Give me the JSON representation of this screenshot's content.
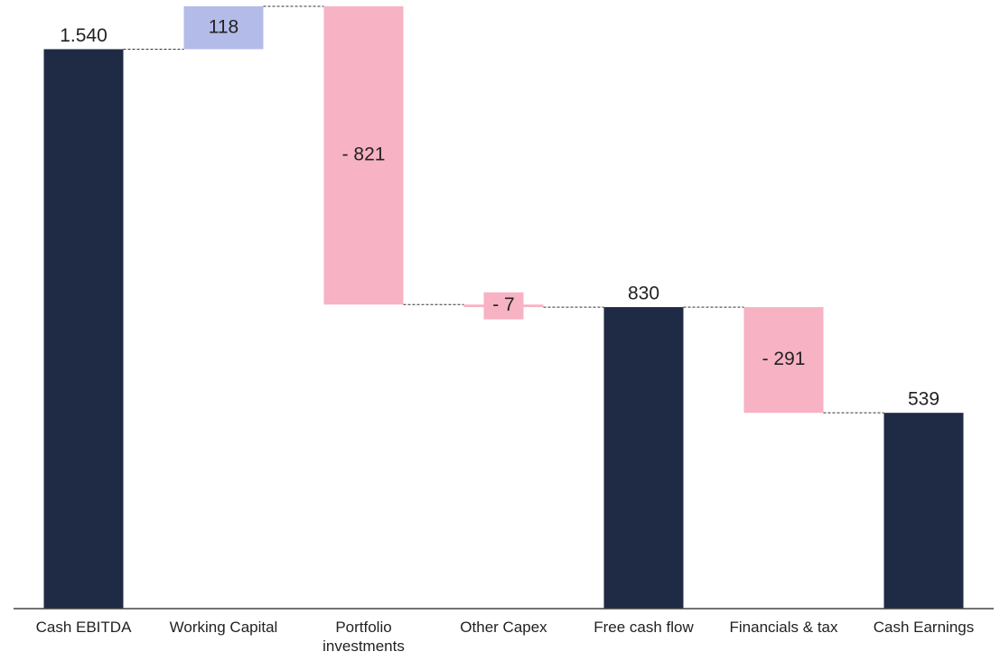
{
  "chart_data": {
    "type": "waterfall",
    "categories": [
      "Cash EBITDA",
      "Working Capital",
      "Portfolio\ninvestments",
      "Other Capex",
      "Free cash flow",
      "Financials & tax",
      "Cash Earnings"
    ],
    "values": [
      1540,
      118,
      -821,
      -7,
      830,
      -291,
      539
    ],
    "value_labels": [
      "1.540",
      "118",
      "- 821",
      "- 7",
      "830",
      "- 291",
      "539"
    ],
    "kinds": [
      "total",
      "delta",
      "delta",
      "delta",
      "total",
      "delta",
      "total"
    ],
    "colors": {
      "total": "#1f2a44",
      "increase": "#b3bbe8",
      "decrease": "#f7b2c4"
    }
  }
}
